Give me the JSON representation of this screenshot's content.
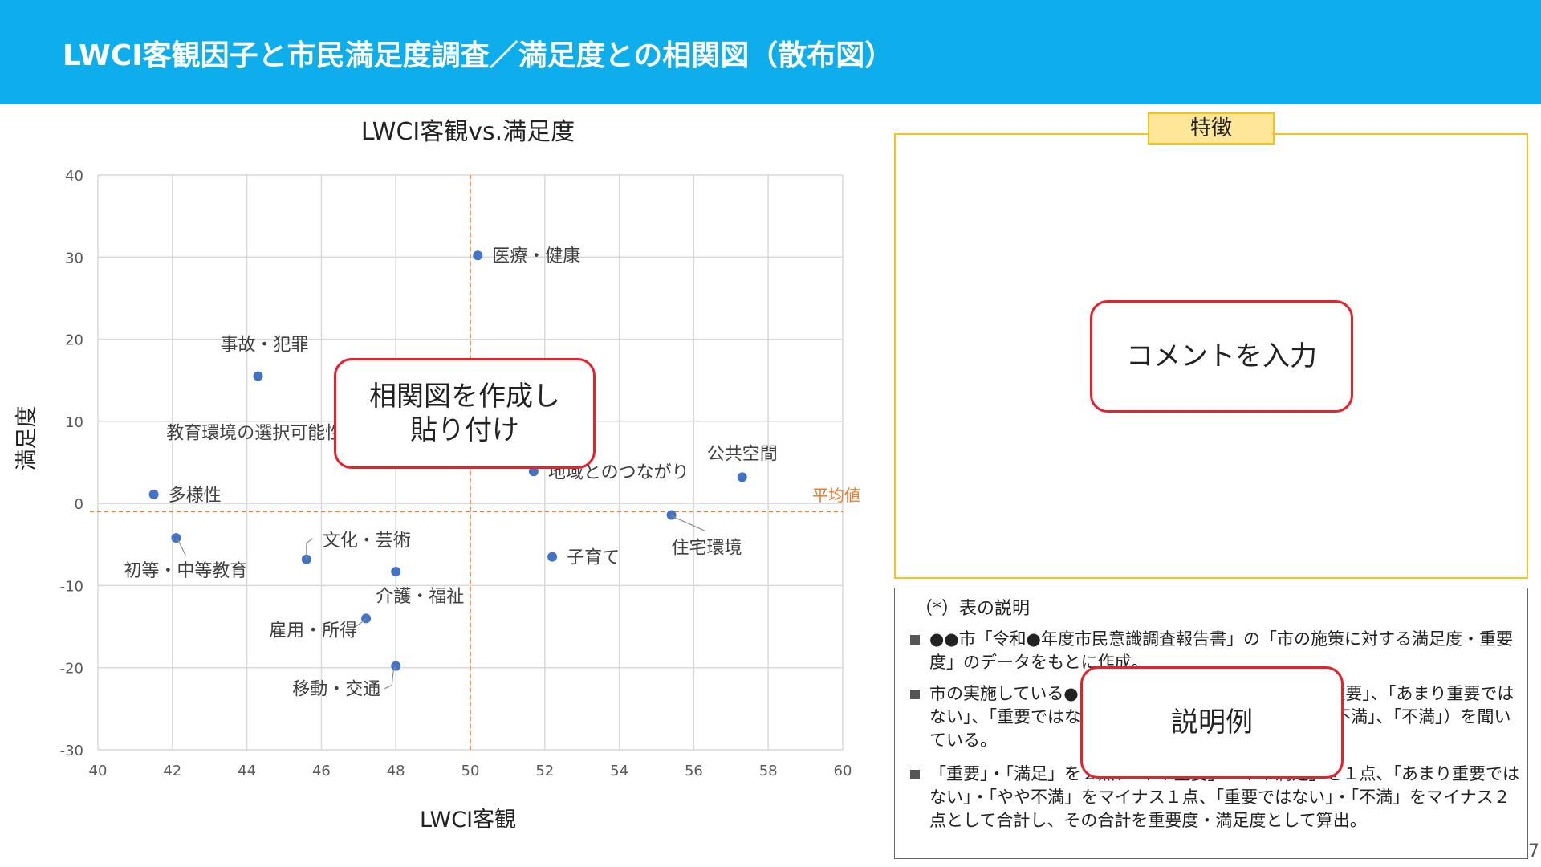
{
  "header": {
    "title": "LWCI客観因子と市民満足度調査／満足度との相関図（散布図）"
  },
  "chart_data": {
    "type": "scatter",
    "title": "LWCI客観vs.満足度",
    "xlabel": "LWCI客観",
    "ylabel": "満足度",
    "xlim": [
      40,
      60
    ],
    "ylim": [
      -30,
      40
    ],
    "xticks": [
      40,
      42,
      44,
      46,
      48,
      50,
      52,
      54,
      56,
      58,
      60
    ],
    "yticks": [
      -30,
      -20,
      -10,
      0,
      10,
      20,
      30,
      40
    ],
    "grid": true,
    "points": [
      {
        "label": "医療・健康",
        "x": 50.2,
        "y": 30.2
      },
      {
        "label": "事故・犯罪",
        "x": 44.3,
        "y": 15.5
      },
      {
        "label": "教育環境の選択可能性",
        "x": 48.0,
        "y": 6.2
      },
      {
        "label": "地域とのつながり",
        "x": 51.7,
        "y": 3.9
      },
      {
        "label": "公共空間",
        "x": 57.3,
        "y": 3.2
      },
      {
        "label": "多様性",
        "x": 41.5,
        "y": 1.1
      },
      {
        "label": "住宅環境",
        "x": 55.4,
        "y": -1.4
      },
      {
        "label": "初等・中等教育",
        "x": 42.1,
        "y": -4.2
      },
      {
        "label": "文化・芸術",
        "x": 45.6,
        "y": -6.8
      },
      {
        "label": "子育て",
        "x": 52.2,
        "y": -6.5
      },
      {
        "label": "介護・福祉",
        "x": 48.0,
        "y": -8.3
      },
      {
        "label": "雇用・所得",
        "x": 47.2,
        "y": -14.0
      },
      {
        "label": "移動・交通",
        "x": 48.0,
        "y": -19.8
      }
    ],
    "average": {
      "label": "平均値",
      "x": 50.0,
      "y": -1.0
    },
    "colors": {
      "point": "#4472C4",
      "average": "#ED7D31",
      "grid": "#D9D9D9"
    }
  },
  "callouts": {
    "chart": "相関図を作成し\n貼り付け",
    "comment": "コメントを入力",
    "explain": "説明例"
  },
  "feature": {
    "tab": "特徴"
  },
  "notes": {
    "heading": "（*）表の説明",
    "items": [
      "●●市「令和●年度市民意識調査報告書」の「市の施策に対する満足度・重要度」のデータをもとに作成。",
      "市の実施している●●の施策について「重要」、「やや重要」、「あまり重要ではない」、「重要ではない」（「満足」、「やや満足」、「やや不満」、「不満」）を聞いている。",
      "「重要」・「満足」を２点、「やや重要」・「やや満足」を１点、「あまり重要ではない」・「やや不満」をマイナス１点、「重要ではない」・「不満」をマイナス２点として合計し、その合計を重要度・満足度として算出。"
    ]
  },
  "page_number": "7"
}
